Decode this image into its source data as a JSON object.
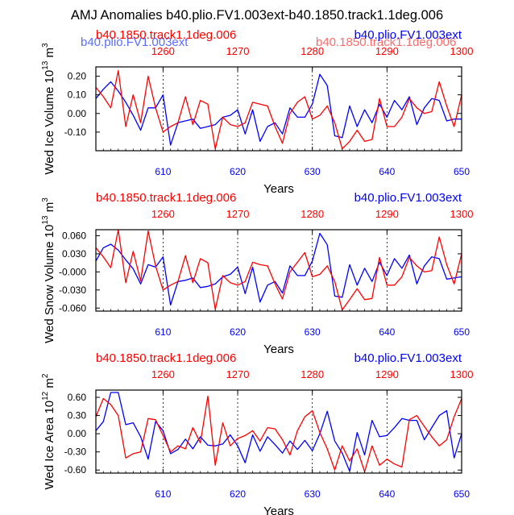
{
  "title": "AMJ Anomalies b40.plio.FV1.003ext-b40.1850.track1.1deg.006",
  "colors": {
    "red": "#ff0000",
    "blue": "#0000ff",
    "black": "#000000",
    "ghost_red": "#ff6a6a",
    "ghost_blue": "#5a6cff"
  },
  "ghost_labels": {
    "blue": "b40.plio.FV1.003ext",
    "red": "b40.1850.track1.1deg.006"
  },
  "chart_data": [
    {
      "type": "line",
      "ylabel": "Wed Ice Volume 10^13 m^3",
      "ylabel_text": "Wed Ice Volume 10",
      "ylabel_exp": "13",
      "ylabel_unit": " m",
      "ylabel_unit_exp": "3",
      "xlabel": "Years",
      "top_left_label": "b40.1850.track1.1deg.006",
      "top_right_label": "b40.plio.FV1.003ext",
      "bottom_xlim": [
        601,
        650
      ],
      "top_xlim": [
        1251,
        1300
      ],
      "bottom_ticks": [
        610,
        620,
        630,
        640,
        650
      ],
      "top_ticks": [
        1260,
        1270,
        1280,
        1290,
        1300
      ],
      "ylim": [
        -0.2,
        0.25
      ],
      "yticks": [
        0.2,
        0.1,
        0.0,
        -0.1
      ],
      "ytick_labels": [
        "0.20",
        "0.10",
        "0.00",
        "-0.10"
      ],
      "gridlines_x": [
        610,
        620,
        630,
        640
      ],
      "series": [
        {
          "name": "b40.plio.FV1.003ext",
          "color": "blue",
          "axis": "bottom",
          "x": [
            601,
            602,
            603,
            604,
            605,
            606,
            607,
            608,
            609,
            610,
            611,
            612,
            613,
            614,
            615,
            616,
            617,
            618,
            619,
            620,
            621,
            622,
            623,
            624,
            625,
            626,
            627,
            628,
            629,
            630,
            631,
            632,
            633,
            634,
            635,
            636,
            637,
            638,
            639,
            640,
            641,
            642,
            643,
            644,
            645,
            646,
            647,
            648,
            649,
            650
          ],
          "y": [
            0.08,
            0.13,
            0.17,
            0.12,
            0.06,
            -0.01,
            -0.09,
            0.03,
            0.03,
            0.1,
            -0.17,
            -0.05,
            -0.04,
            -0.03,
            -0.08,
            -0.07,
            -0.06,
            -0.02,
            -0.01,
            0.02,
            -0.11,
            0.02,
            -0.15,
            -0.07,
            -0.05,
            -0.11,
            0.03,
            -0.02,
            -0.02,
            0.05,
            0.21,
            0.15,
            -0.12,
            -0.13,
            0.04,
            -0.07,
            0.02,
            -0.05,
            0.05,
            -0.02,
            0.07,
            0.02,
            0.09,
            -0.06,
            0.03,
            0.08,
            0.07,
            -0.04,
            -0.03,
            -0.03
          ]
        },
        {
          "name": "b40.1850.track1.1deg.006",
          "color": "red",
          "axis": "bottom",
          "x": [
            601,
            602,
            603,
            604,
            605,
            606,
            607,
            608,
            609,
            610,
            611,
            612,
            613,
            614,
            615,
            616,
            617,
            618,
            619,
            620,
            621,
            622,
            623,
            624,
            625,
            626,
            627,
            628,
            629,
            630,
            631,
            632,
            633,
            634,
            635,
            636,
            637,
            638,
            639,
            640,
            641,
            642,
            643,
            644,
            645,
            646,
            647,
            648,
            649,
            650
          ],
          "y": [
            0.14,
            0.09,
            0.03,
            0.23,
            -0.07,
            0.1,
            -0.05,
            0.2,
            0.03,
            -0.1,
            -0.07,
            -0.05,
            0.09,
            -0.06,
            0.07,
            0.05,
            -0.19,
            -0.02,
            -0.06,
            -0.07,
            -0.05,
            0.06,
            0.05,
            0.04,
            -0.07,
            -0.16,
            0.0,
            0.06,
            0.09,
            -0.03,
            -0.01,
            0.04,
            -0.05,
            -0.19,
            -0.15,
            -0.09,
            -0.15,
            -0.14,
            0.08,
            -0.07,
            -0.07,
            -0.02,
            0.08,
            0.03,
            0.0,
            0.01,
            0.17,
            0.04,
            -0.07,
            0.1
          ]
        }
      ]
    },
    {
      "type": "line",
      "ylabel": "Wed Snow Volume 10^13 m^3",
      "ylabel_text": "Wed Snow Volume 10",
      "ylabel_exp": "13",
      "ylabel_unit": " m",
      "ylabel_unit_exp": "3",
      "xlabel": "Years",
      "top_left_label": "b40.1850.track1.1deg.006",
      "top_right_label": "b40.plio.FV1.003ext",
      "bottom_xlim": [
        601,
        650
      ],
      "top_xlim": [
        1251,
        1300
      ],
      "bottom_ticks": [
        610,
        620,
        630,
        640,
        650
      ],
      "top_ticks": [
        1260,
        1270,
        1280,
        1290,
        1300
      ],
      "ylim": [
        -0.065,
        0.07
      ],
      "yticks": [
        0.06,
        0.03,
        0.0,
        -0.03,
        -0.06
      ],
      "ytick_labels": [
        "0.060",
        "0.030",
        "-0.000",
        "-0.030",
        "-0.060"
      ],
      "gridlines_x": [
        610,
        620,
        630,
        640
      ],
      "series": [
        {
          "name": "b40.plio.FV1.003ext",
          "color": "blue",
          "axis": "bottom",
          "x": [
            601,
            602,
            603,
            604,
            605,
            606,
            607,
            608,
            609,
            610,
            611,
            612,
            613,
            614,
            615,
            616,
            617,
            618,
            619,
            620,
            621,
            622,
            623,
            624,
            625,
            626,
            627,
            628,
            629,
            630,
            631,
            632,
            633,
            634,
            635,
            636,
            637,
            638,
            639,
            640,
            641,
            642,
            643,
            644,
            645,
            646,
            647,
            648,
            649,
            650
          ],
          "y": [
            0.018,
            0.04,
            0.046,
            0.036,
            0.02,
            0.005,
            -0.02,
            0.012,
            0.008,
            0.025,
            -0.055,
            -0.016,
            -0.014,
            -0.01,
            -0.026,
            -0.024,
            -0.02,
            -0.008,
            -0.004,
            0.008,
            -0.036,
            0.008,
            -0.05,
            -0.022,
            -0.016,
            -0.035,
            0.01,
            -0.006,
            -0.006,
            0.018,
            0.064,
            0.045,
            -0.04,
            -0.042,
            0.012,
            -0.022,
            0.006,
            -0.016,
            0.016,
            -0.006,
            0.022,
            0.006,
            0.028,
            -0.02,
            0.01,
            0.025,
            0.022,
            -0.012,
            -0.01,
            -0.008
          ]
        },
        {
          "name": "b40.1850.track1.1deg.006",
          "color": "red",
          "axis": "bottom",
          "x": [
            601,
            602,
            603,
            604,
            605,
            606,
            607,
            608,
            609,
            610,
            611,
            612,
            613,
            614,
            615,
            616,
            617,
            618,
            619,
            620,
            621,
            622,
            623,
            624,
            625,
            626,
            627,
            628,
            629,
            630,
            631,
            632,
            633,
            634,
            635,
            636,
            637,
            638,
            639,
            640,
            641,
            642,
            643,
            644,
            645,
            646,
            647,
            648,
            649,
            650
          ],
          "y": [
            0.04,
            0.025,
            0.007,
            0.07,
            -0.018,
            0.034,
            -0.015,
            0.068,
            0.01,
            -0.03,
            -0.022,
            -0.016,
            0.027,
            -0.018,
            0.022,
            0.015,
            -0.062,
            -0.006,
            -0.018,
            -0.022,
            -0.016,
            0.016,
            0.012,
            0.01,
            -0.02,
            -0.045,
            0.0,
            0.016,
            0.032,
            -0.008,
            -0.004,
            0.01,
            -0.016,
            -0.063,
            -0.046,
            -0.028,
            -0.046,
            -0.044,
            0.024,
            -0.022,
            -0.022,
            -0.008,
            0.024,
            0.01,
            0.0,
            0.002,
            0.058,
            0.012,
            -0.02,
            0.03
          ]
        }
      ]
    },
    {
      "type": "line",
      "ylabel": "Wed Ice Area 10^12 m^2",
      "ylabel_text": "Wed Ice Area 10",
      "ylabel_exp": "12",
      "ylabel_unit": " m",
      "ylabel_unit_exp": "2",
      "xlabel": "Years",
      "top_left_label": "b40.1850.track1.1deg.006",
      "top_right_label": "b40.plio.FV1.003ext",
      "bottom_xlim": [
        601,
        650
      ],
      "top_xlim": [
        1251,
        1300
      ],
      "bottom_ticks": [
        610,
        620,
        630,
        640,
        650
      ],
      "top_ticks": [
        1260,
        1270,
        1280,
        1290,
        1300
      ],
      "ylim": [
        -0.65,
        0.72
      ],
      "yticks": [
        0.6,
        0.3,
        0.0,
        -0.3,
        -0.6
      ],
      "ytick_labels": [
        "0.60",
        "0.30",
        "0.00",
        "-0.30",
        "-0.60"
      ],
      "gridlines_x": [
        610,
        620,
        630,
        640
      ],
      "series": [
        {
          "name": "b40.plio.FV1.003ext",
          "color": "blue",
          "axis": "bottom",
          "x": [
            601,
            602,
            603,
            604,
            605,
            606,
            607,
            608,
            609,
            610,
            611,
            612,
            613,
            614,
            615,
            616,
            617,
            618,
            619,
            620,
            621,
            622,
            623,
            624,
            625,
            626,
            627,
            628,
            629,
            630,
            631,
            632,
            633,
            634,
            635,
            636,
            637,
            638,
            639,
            640,
            641,
            642,
            643,
            644,
            645,
            646,
            647,
            648,
            649,
            650
          ],
          "y": [
            0.05,
            0.2,
            0.68,
            0.68,
            0.15,
            0.18,
            -0.05,
            -0.42,
            0.2,
            0.05,
            -0.33,
            -0.26,
            -0.09,
            -0.25,
            -0.05,
            -0.19,
            -0.2,
            -0.17,
            -0.02,
            -0.2,
            -0.48,
            -0.02,
            -0.29,
            -0.05,
            -0.18,
            -0.32,
            -0.12,
            -0.26,
            -0.11,
            -0.28,
            0.0,
            0.37,
            -0.12,
            -0.32,
            -0.62,
            0.02,
            -0.35,
            0.22,
            -0.05,
            -0.03,
            0.1,
            0.25,
            0.22,
            0.22,
            -0.1,
            0.1,
            0.3,
            0.38,
            -0.4,
            0.0
          ]
        },
        {
          "name": "b40.1850.track1.1deg.006",
          "color": "red",
          "axis": "bottom",
          "x": [
            601,
            602,
            603,
            604,
            605,
            606,
            607,
            608,
            609,
            610,
            611,
            612,
            613,
            614,
            615,
            616,
            617,
            618,
            619,
            620,
            621,
            622,
            623,
            624,
            625,
            626,
            627,
            628,
            629,
            630,
            631,
            632,
            633,
            634,
            635,
            636,
            637,
            638,
            639,
            640,
            641,
            642,
            643,
            644,
            645,
            646,
            647,
            648,
            649,
            650
          ],
          "y": [
            0.28,
            0.58,
            0.48,
            0.3,
            -0.4,
            -0.33,
            -0.3,
            0.25,
            0.23,
            -0.03,
            -0.3,
            -0.2,
            -0.25,
            0.1,
            -0.15,
            0.62,
            -0.52,
            0.18,
            -0.2,
            -0.08,
            -0.03,
            0.05,
            -0.12,
            0.1,
            0.08,
            -0.1,
            -0.35,
            0.05,
            0.28,
            0.38,
            0.02,
            -0.25,
            -0.6,
            -0.2,
            -0.45,
            -0.25,
            -0.63,
            -0.2,
            -0.52,
            -0.42,
            -0.5,
            -0.55,
            0.23,
            0.3,
            0.12,
            -0.05,
            -0.2,
            -0.1,
            0.28,
            0.58
          ]
        }
      ]
    }
  ]
}
